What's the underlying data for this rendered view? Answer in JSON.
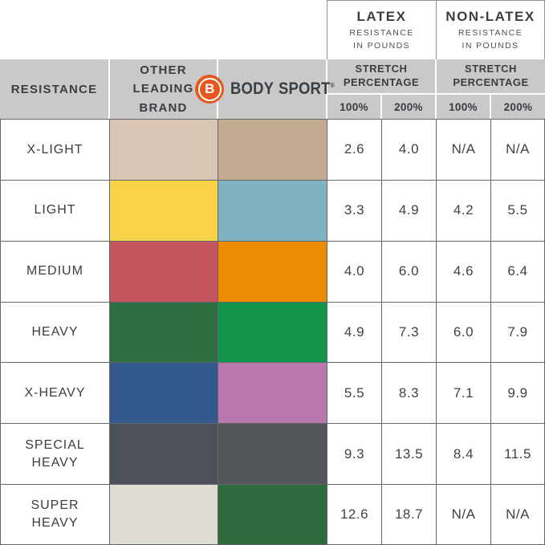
{
  "header": {
    "latex_title": "LATEX",
    "latex_subtitle": "RESISTANCE\nIN POUNDS",
    "nonlatex_title": "NON-LATEX",
    "nonlatex_subtitle": "RESISTANCE\nIN POUNDS",
    "stretch_percentage": "STRETCH\nPERCENTAGE",
    "pct_100": "100%",
    "pct_200": "200%",
    "resistance": "RESISTANCE",
    "other_leading_brand": "OTHER\nLEADING\nBRAND",
    "logo": {
      "initial": "B",
      "name": "BODY SPORT",
      "registered": "®"
    }
  },
  "colors": {
    "brand_orange": "#E7571F",
    "header_gray": "#C9C9C9",
    "grid_line": "#63666A",
    "text": "#3A3E42"
  },
  "chart_data": {
    "type": "table",
    "columns": [
      "RESISTANCE",
      "OTHER LEADING BRAND",
      "BODY SPORT",
      "LATEX 100%",
      "LATEX 200%",
      "NON-LATEX 100%",
      "NON-LATEX 200%"
    ],
    "units": "RESISTANCE IN POUNDS",
    "rows": [
      {
        "label": "X-LIGHT",
        "other_brand_color": "#D9C6B2",
        "body_sport_color": "#C4AA90",
        "latex_100": "2.6",
        "latex_200": "4.0",
        "nonlatex_100": "N/A",
        "nonlatex_200": "N/A"
      },
      {
        "label": "LIGHT",
        "other_brand_color": "#FBD349",
        "body_sport_color": "#80B2C3",
        "latex_100": "3.3",
        "latex_200": "4.9",
        "nonlatex_100": "4.2",
        "nonlatex_200": "5.5"
      },
      {
        "label": "MEDIUM",
        "other_brand_color": "#C4555C",
        "body_sport_color": "#EC8B00",
        "latex_100": "4.0",
        "latex_200": "6.0",
        "nonlatex_100": "4.6",
        "nonlatex_200": "6.4"
      },
      {
        "label": "HEAVY",
        "other_brand_color": "#2E6F41",
        "body_sport_color": "#0F9449",
        "latex_100": "4.9",
        "latex_200": "7.3",
        "nonlatex_100": "6.0",
        "nonlatex_200": "7.9"
      },
      {
        "label": "X-HEAVY",
        "other_brand_color": "#33598F",
        "body_sport_color": "#B878AE",
        "latex_100": "5.5",
        "latex_200": "8.3",
        "nonlatex_100": "7.1",
        "nonlatex_200": "9.9"
      },
      {
        "label": "SPECIAL\nHEAVY",
        "other_brand_color": "#4B5156",
        "body_sport_color": "#52565B",
        "latex_100": "9.3",
        "latex_200": "13.5",
        "nonlatex_100": "8.4",
        "nonlatex_200": "11.5"
      },
      {
        "label": "SUPER\nHEAVY",
        "other_brand_color": "#DFDCD3",
        "body_sport_color": "#2E6B3D",
        "latex_100": "12.6",
        "latex_200": "18.7",
        "nonlatex_100": "N/A",
        "nonlatex_200": "N/A"
      }
    ]
  }
}
